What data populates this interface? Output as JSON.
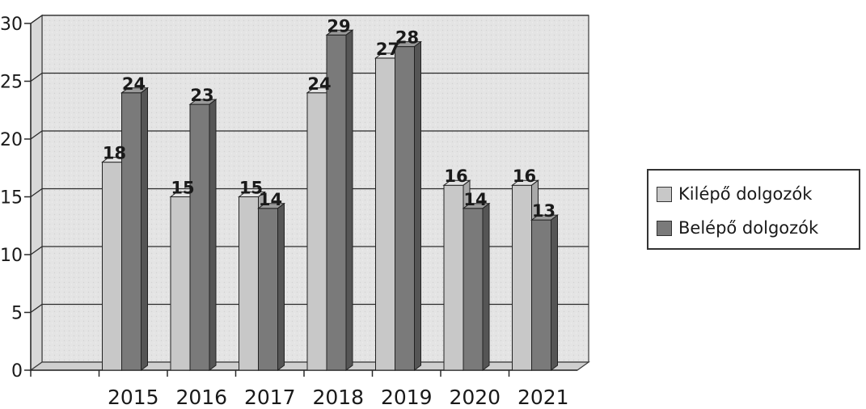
{
  "chart_data": {
    "type": "bar",
    "categories": [
      "2015",
      "2016",
      "2017",
      "2018",
      "2019",
      "2020",
      "2021"
    ],
    "series": [
      {
        "name": "Kilépő dolgozók",
        "values": [
          18,
          15,
          15,
          24,
          27,
          16,
          16
        ],
        "color": "#c8c8c8"
      },
      {
        "name": "Belépő dolgozók",
        "values": [
          24,
          23,
          14,
          29,
          28,
          14,
          13
        ],
        "color": "#7a7a7a"
      }
    ],
    "ylim": [
      0,
      30
    ],
    "yticks": [
      0,
      5,
      10,
      15,
      20,
      25,
      30
    ],
    "ytick_labels": [
      "0",
      "5",
      "10",
      "15",
      "20",
      "25",
      "30"
    ],
    "data_labels": true,
    "grid": true,
    "legend_position": "right",
    "style": "3d-clustered-column",
    "title": "",
    "xlabel": "",
    "ylabel": ""
  },
  "colors": {
    "plot_background": "#e6e6e6",
    "gridline": "#2a2a2a",
    "series_1": "#c8c8c8",
    "series_2": "#7a7a7a"
  }
}
